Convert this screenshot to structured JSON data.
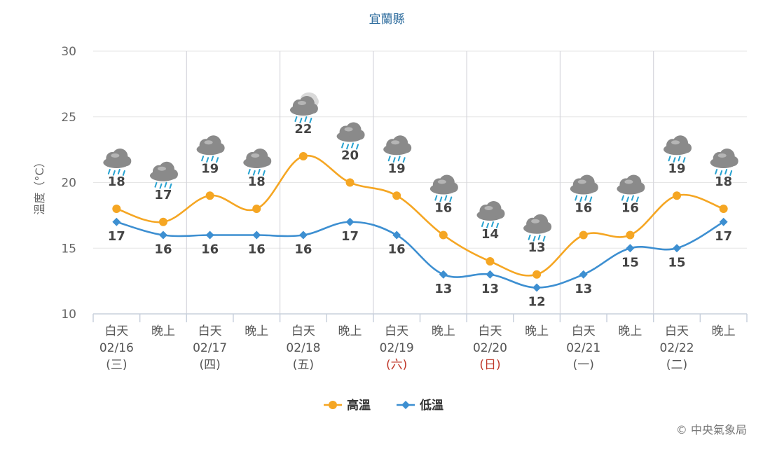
{
  "credit": "© 中央氣象局",
  "chart_data": {
    "type": "line",
    "title": "宜蘭縣",
    "ylabel": "溫度（°C）",
    "ylim": [
      10,
      30
    ],
    "yticks": [
      10,
      15,
      20,
      25,
      30
    ],
    "grid": true,
    "legend_position": "bottom-center",
    "categories": [
      "白天",
      "晚上",
      "白天",
      "晚上",
      "白天",
      "晚上",
      "白天",
      "晚上",
      "白天",
      "晚上",
      "白天",
      "晚上",
      "白天",
      "晚上"
    ],
    "day_groups": [
      {
        "date": "02/16",
        "weekday": "(三)",
        "holiday": false
      },
      {
        "date": "02/17",
        "weekday": "(四)",
        "holiday": false
      },
      {
        "date": "02/18",
        "weekday": "(五)",
        "holiday": false
      },
      {
        "date": "02/19",
        "weekday": "(六)",
        "holiday": true
      },
      {
        "date": "02/20",
        "weekday": "(日)",
        "holiday": true
      },
      {
        "date": "02/21",
        "weekday": "(一)",
        "holiday": false
      },
      {
        "date": "02/22",
        "weekday": "(二)",
        "holiday": false
      }
    ],
    "series": [
      {
        "name": "高溫",
        "color": "#f5a623",
        "marker": "circle",
        "values": [
          18,
          17,
          19,
          18,
          22,
          20,
          19,
          16,
          14,
          13,
          16,
          16,
          19,
          18
        ]
      },
      {
        "name": "低溫",
        "color": "#3d8fd1",
        "marker": "diamond",
        "values": [
          17,
          16,
          16,
          16,
          16,
          17,
          16,
          13,
          13,
          12,
          13,
          15,
          15,
          17
        ]
      }
    ],
    "weather_icons": [
      "rain-cloud-icon",
      "rain-cloud-icon",
      "rain-cloud-icon",
      "rain-cloud-icon",
      "cloudy-rain-icon",
      "rain-cloud-icon",
      "rain-cloud-icon",
      "rain-cloud-icon",
      "rain-cloud-icon",
      "rain-cloud-icon",
      "rain-cloud-icon",
      "rain-cloud-icon",
      "rain-cloud-icon",
      "rain-cloud-icon"
    ],
    "colors": {
      "holiday": "#c0392b",
      "grid": "#e6e6e6",
      "rain": "#29a3d1",
      "cloud": "#8a8a8a"
    }
  }
}
